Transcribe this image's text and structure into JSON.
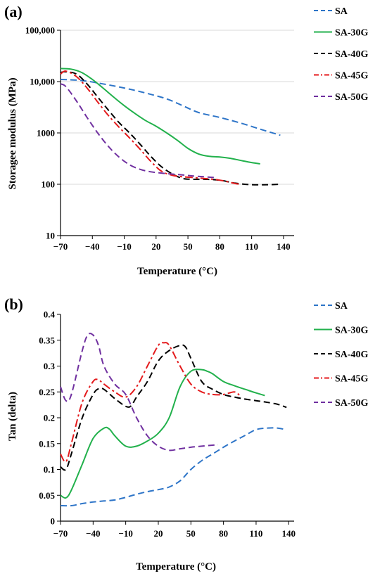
{
  "figure": {
    "panel_labels": [
      "(a)",
      "(b)"
    ]
  },
  "chart_data": [
    {
      "type": "line",
      "panel": "(a)",
      "title": "",
      "xlabel": "Temperature (°C)",
      "ylabel": "Storagee  modulus (MPa)",
      "y_scale": "log",
      "xlim": [
        -70,
        150
      ],
      "ylim": [
        10,
        100000
      ],
      "x_ticks": [
        -70,
        -40,
        -10,
        20,
        50,
        80,
        110,
        140
      ],
      "x_tick_labels": [
        "−70",
        "−40",
        "−10",
        "20",
        "50",
        "80",
        "110",
        "140"
      ],
      "y_ticks": [
        10,
        100,
        1000,
        10000,
        100000
      ],
      "y_tick_labels": [
        "10",
        "100",
        "1000",
        "10,000",
        "100,000"
      ],
      "grid": "horizontal",
      "legend": "right",
      "series": [
        {
          "name": "SA",
          "color": "#2e75c8",
          "dash": "dash",
          "x": [
            -70,
            -50,
            -30,
            -10,
            10,
            30,
            45,
            60,
            80,
            100,
            120,
            137
          ],
          "y": [
            11000,
            10500,
            9000,
            7500,
            6000,
            4600,
            3400,
            2500,
            2000,
            1550,
            1150,
            900
          ]
        },
        {
          "name": "SA-30G",
          "color": "#22b14c",
          "dash": "solid",
          "x": [
            -70,
            -60,
            -50,
            -40,
            -30,
            -20,
            -10,
            0,
            10,
            20,
            30,
            40,
            50,
            60,
            70,
            80,
            90,
            100,
            110,
            118
          ],
          "y": [
            18000,
            17500,
            15000,
            11000,
            7500,
            5000,
            3400,
            2400,
            1750,
            1350,
            1000,
            720,
            500,
            390,
            350,
            340,
            320,
            290,
            265,
            250
          ]
        },
        {
          "name": "SA-40G",
          "color": "#000000",
          "dash": "dash",
          "x": [
            -70,
            -65,
            -55,
            -45,
            -35,
            -25,
            -15,
            -5,
            5,
            15,
            25,
            35,
            45,
            55,
            65,
            80,
            95,
            110,
            125,
            138
          ],
          "y": [
            15000,
            15500,
            14000,
            9000,
            5000,
            2800,
            1600,
            1000,
            600,
            350,
            220,
            160,
            130,
            125,
            125,
            120,
            105,
            98,
            98,
            100
          ]
        },
        {
          "name": "SA-45G",
          "color": "#e41a1c",
          "dash": "dashdot",
          "x": [
            -70,
            -65,
            -55,
            -45,
            -35,
            -25,
            -15,
            -5,
            5,
            15,
            25,
            35,
            45,
            55,
            65,
            80,
            95,
            100
          ],
          "y": [
            14000,
            16000,
            12500,
            7500,
            4000,
            2200,
            1300,
            800,
            480,
            280,
            180,
            150,
            140,
            135,
            130,
            120,
            103,
            100
          ]
        },
        {
          "name": "SA-50G",
          "color": "#7030a0",
          "dash": "dash",
          "x": [
            -70,
            -65,
            -55,
            -45,
            -35,
            -25,
            -15,
            -5,
            5,
            15,
            25,
            35,
            45,
            55,
            65,
            75
          ],
          "y": [
            9000,
            8000,
            4200,
            2000,
            1000,
            550,
            340,
            240,
            195,
            175,
            165,
            158,
            152,
            145,
            140,
            135
          ]
        }
      ]
    },
    {
      "type": "line",
      "panel": "(b)",
      "title": "",
      "xlabel": "Temperature (°C)",
      "ylabel": "Tan (delta)",
      "xlim": [
        -70,
        145
      ],
      "ylim": [
        0,
        0.4
      ],
      "x_ticks": [
        -70,
        -40,
        -10,
        20,
        50,
        80,
        110,
        140
      ],
      "x_tick_labels": [
        "−70",
        "−40",
        "−10",
        "20",
        "50",
        "80",
        "110",
        "140"
      ],
      "y_ticks": [
        0,
        0.05,
        0.1,
        0.15,
        0.2,
        0.25,
        0.3,
        0.35,
        0.4
      ],
      "y_tick_labels": [
        "0",
        "0.05",
        "0.1",
        "0.15",
        "0.2",
        "0.25",
        "0.3",
        "0.35",
        "0.4"
      ],
      "grid": "none",
      "legend": "right",
      "series": [
        {
          "name": "SA",
          "color": "#2e75c8",
          "dash": "dash",
          "x": [
            -70,
            -60,
            -50,
            -40,
            -30,
            -20,
            -10,
            0,
            10,
            20,
            30,
            40,
            50,
            60,
            70,
            80,
            90,
            100,
            110,
            120,
            130,
            137
          ],
          "y": [
            0.03,
            0.03,
            0.034,
            0.037,
            0.039,
            0.041,
            0.046,
            0.052,
            0.057,
            0.061,
            0.066,
            0.078,
            0.1,
            0.117,
            0.13,
            0.143,
            0.155,
            0.166,
            0.177,
            0.18,
            0.18,
            0.177
          ]
        },
        {
          "name": "SA-30G",
          "color": "#22b14c",
          "dash": "solid",
          "x": [
            -70,
            -65,
            -60,
            -50,
            -40,
            -30,
            -25,
            -20,
            -10,
            0,
            10,
            20,
            30,
            40,
            50,
            60,
            65,
            70,
            80,
            90,
            100,
            110,
            118
          ],
          "y": [
            0.05,
            0.045,
            0.06,
            0.11,
            0.16,
            0.18,
            0.178,
            0.165,
            0.145,
            0.145,
            0.155,
            0.17,
            0.2,
            0.26,
            0.29,
            0.293,
            0.29,
            0.285,
            0.27,
            0.262,
            0.255,
            0.248,
            0.243
          ]
        },
        {
          "name": "SA-40G",
          "color": "#000000",
          "dash": "dash",
          "x": [
            -70,
            -65,
            -60,
            -50,
            -40,
            -35,
            -30,
            -20,
            -10,
            -5,
            0,
            10,
            20,
            30,
            40,
            45,
            50,
            60,
            70,
            80,
            90,
            100,
            110,
            120,
            130,
            138
          ],
          "y": [
            0.105,
            0.1,
            0.13,
            0.2,
            0.245,
            0.256,
            0.255,
            0.237,
            0.222,
            0.223,
            0.24,
            0.27,
            0.31,
            0.33,
            0.34,
            0.337,
            0.315,
            0.27,
            0.255,
            0.245,
            0.24,
            0.236,
            0.233,
            0.23,
            0.226,
            0.22
          ]
        },
        {
          "name": "SA-45G",
          "color": "#e41a1c",
          "dash": "dashdot",
          "x": [
            -70,
            -65,
            -60,
            -50,
            -40,
            -35,
            -30,
            -20,
            -10,
            0,
            10,
            20,
            25,
            30,
            40,
            50,
            60,
            70,
            80,
            90,
            95
          ],
          "y": [
            0.13,
            0.115,
            0.15,
            0.23,
            0.27,
            0.273,
            0.265,
            0.25,
            0.24,
            0.26,
            0.3,
            0.34,
            0.345,
            0.34,
            0.3,
            0.265,
            0.25,
            0.245,
            0.245,
            0.25,
            0.243
          ]
        },
        {
          "name": "SA-50G",
          "color": "#7030a0",
          "dash": "dash",
          "x": [
            -70,
            -65,
            -60,
            -50,
            -45,
            -40,
            -35,
            -30,
            -20,
            -10,
            0,
            10,
            20,
            30,
            40,
            50,
            60,
            70,
            75
          ],
          "y": [
            0.26,
            0.233,
            0.245,
            0.33,
            0.36,
            0.36,
            0.34,
            0.3,
            0.265,
            0.245,
            0.2,
            0.165,
            0.145,
            0.137,
            0.14,
            0.143,
            0.145,
            0.147,
            0.148
          ]
        }
      ]
    }
  ]
}
